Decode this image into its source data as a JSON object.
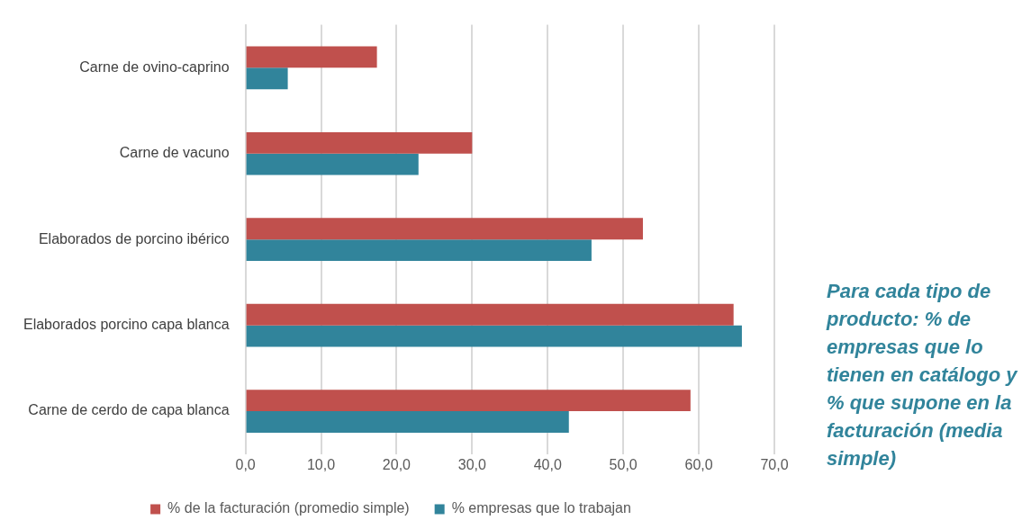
{
  "chart_data": {
    "type": "bar",
    "orientation": "horizontal",
    "categories": [
      "Carne de ovino-caprino",
      "Carne de vacuno",
      "Elaborados de porcino ibérico",
      "Elaborados porcino capa blanca",
      "Carne de cerdo de capa blanca"
    ],
    "series": [
      {
        "name": "% de la facturación (promedio simple)",
        "color": "#c0504d",
        "values": [
          17.4,
          30.0,
          52.6,
          64.6,
          58.9
        ]
      },
      {
        "name": "% empresas que lo trabajan",
        "color": "#31849b",
        "values": [
          5.6,
          22.9,
          45.8,
          65.7,
          42.8
        ]
      }
    ],
    "xlim": [
      0,
      70
    ],
    "xticks": [
      {
        "value": 0,
        "label": "0,0"
      },
      {
        "value": 10,
        "label": "10,0"
      },
      {
        "value": 20,
        "label": "20,0"
      },
      {
        "value": 30,
        "label": "30,0"
      },
      {
        "value": 40,
        "label": "40,0"
      },
      {
        "value": 50,
        "label": "50,0"
      },
      {
        "value": 60,
        "label": "60,0"
      },
      {
        "value": 70,
        "label": "70,0"
      }
    ],
    "grid": "x",
    "legend": "bottom",
    "annotations": [
      "Para cada tipo de producto: % de empresas que lo tienen en catálogo y % que supone en la facturación (media simple)"
    ]
  }
}
